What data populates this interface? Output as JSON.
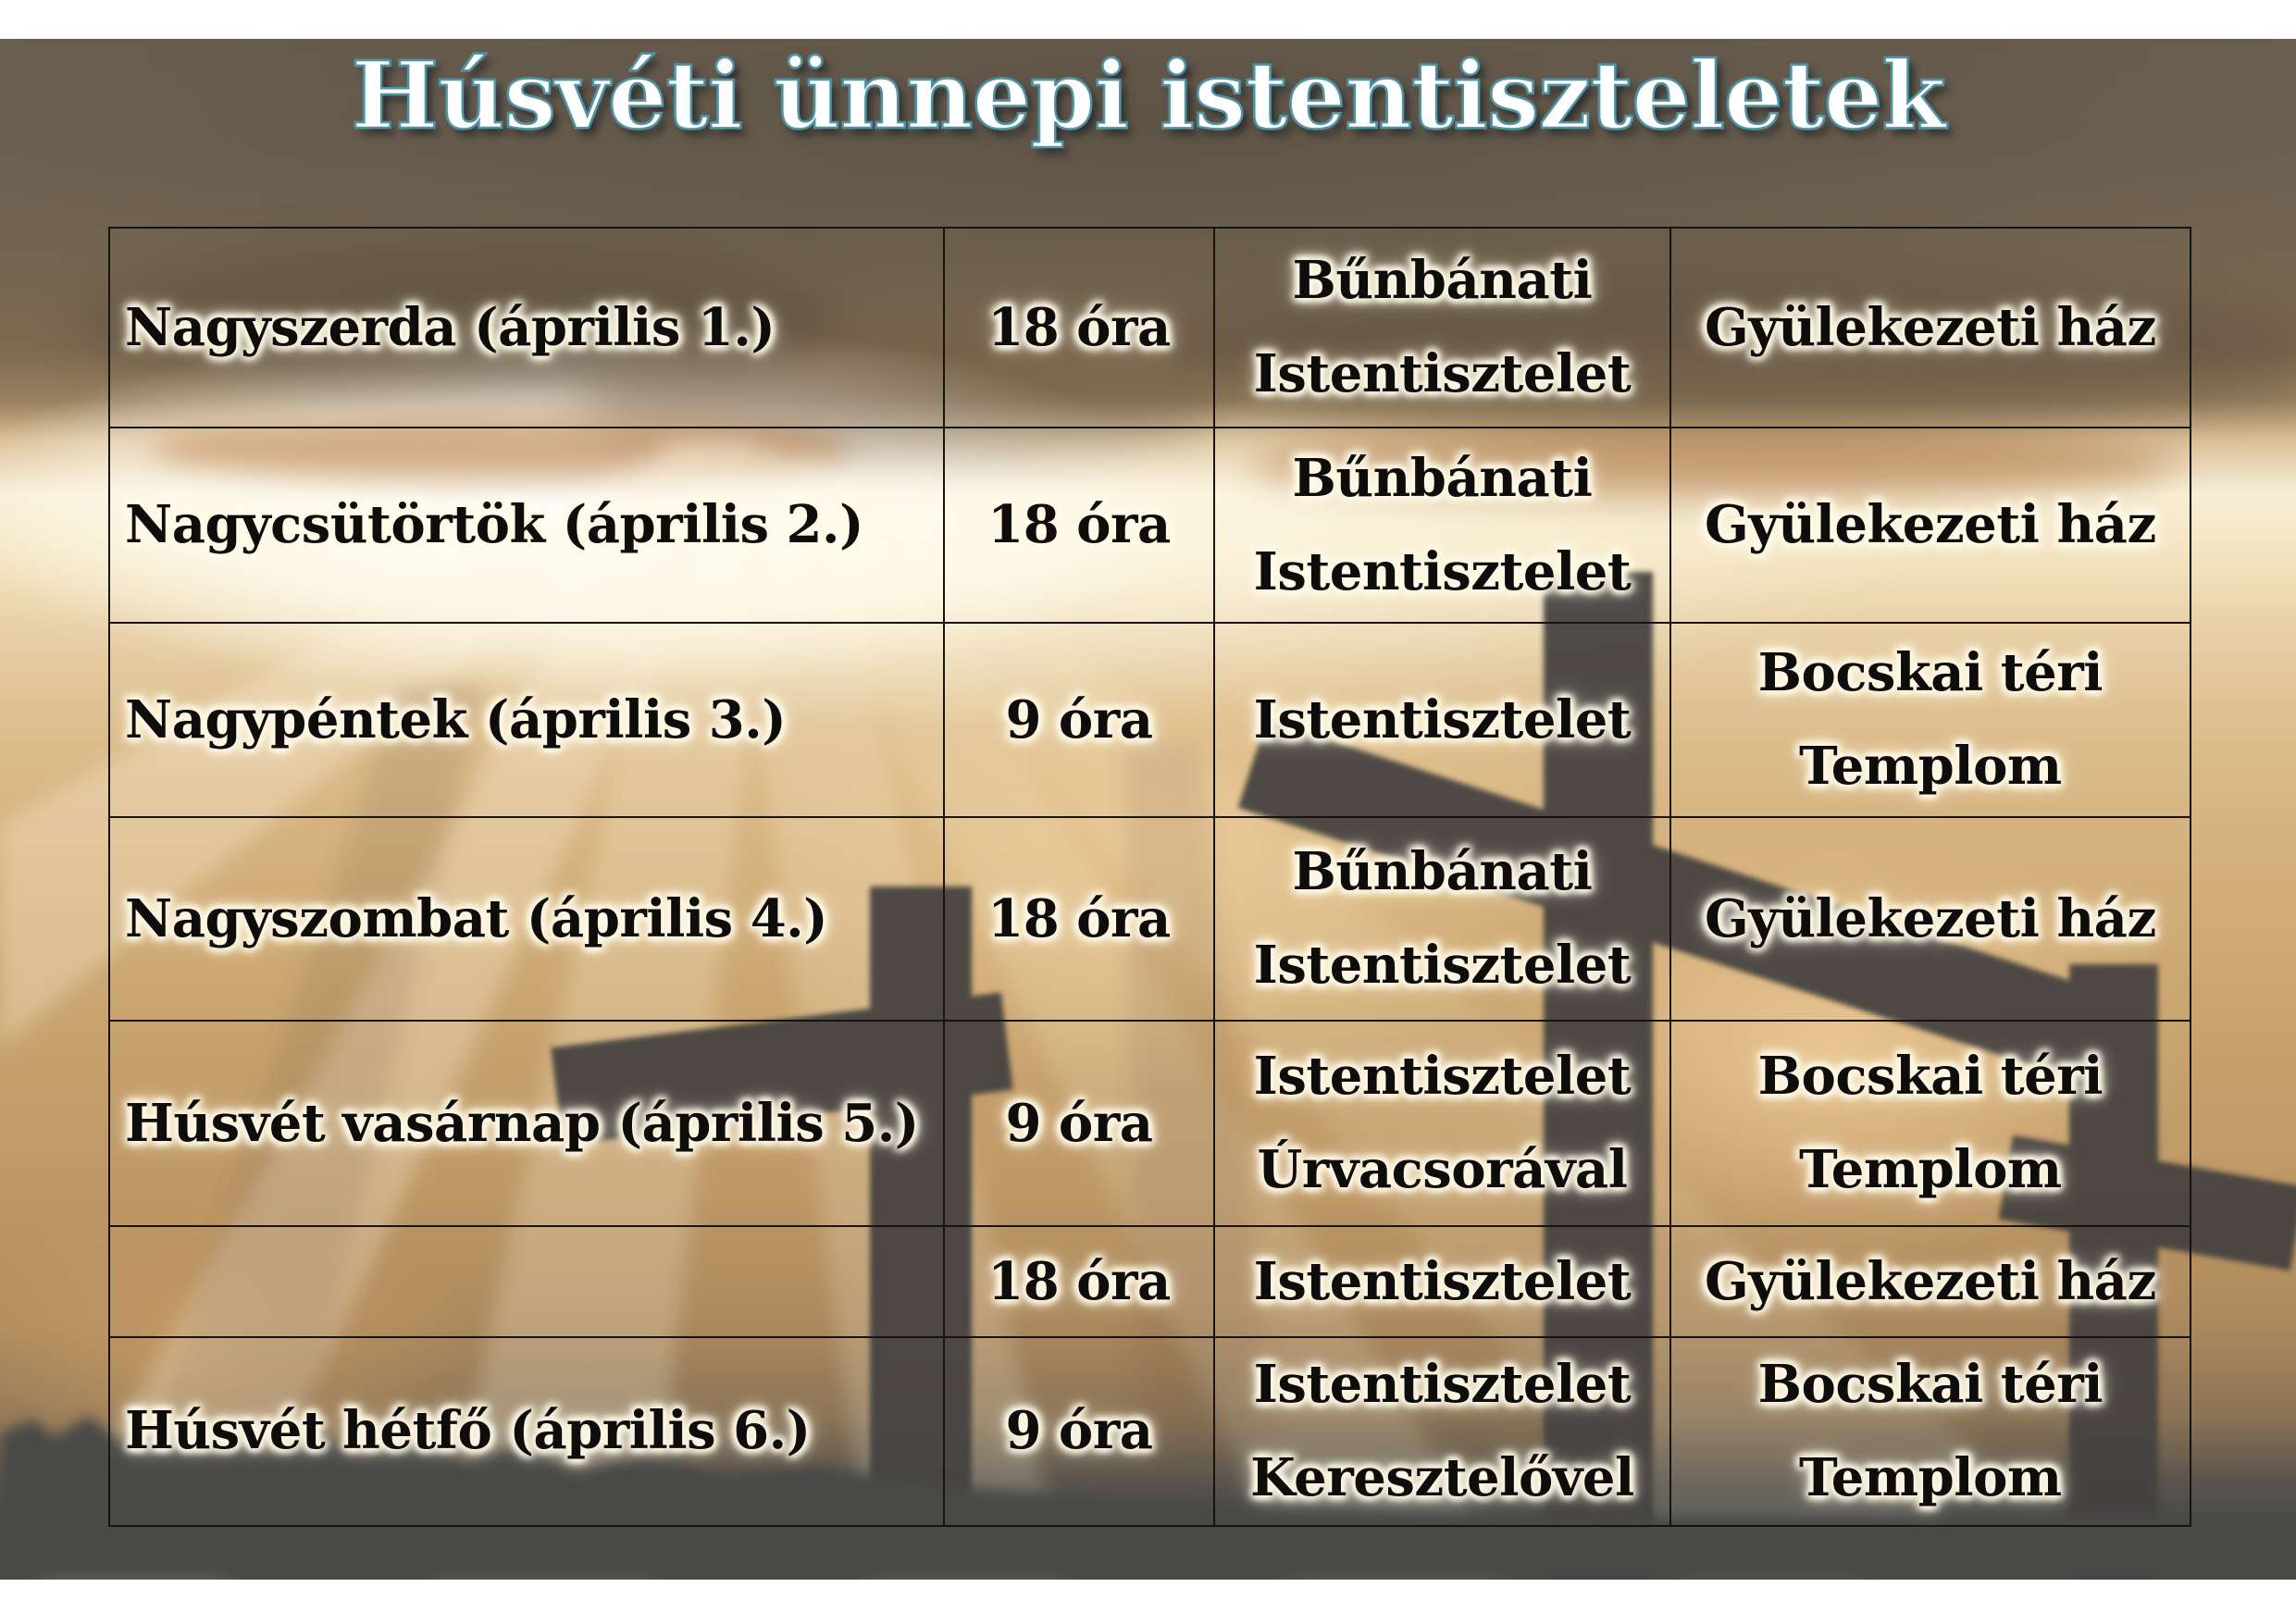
{
  "title": "Húsvéti ünnepi istentiszteletek",
  "table": {
    "rows": [
      {
        "day": "Nagyszerda (április 1.)",
        "time": "18 óra",
        "service": [
          "Bűnbánati",
          "Istentisztelet"
        ],
        "location": [
          "Gyülekezeti ház"
        ]
      },
      {
        "day": "Nagycsütörtök (április 2.)",
        "time": "18 óra",
        "service": [
          "Bűnbánati",
          "Istentisztelet"
        ],
        "location": [
          "Gyülekezeti ház"
        ]
      },
      {
        "day": "Nagypéntek (április 3.)",
        "time": "9 óra",
        "service": [
          "Istentisztelet"
        ],
        "location": [
          "Bocskai téri",
          "Templom"
        ]
      },
      {
        "day": "Nagyszombat (április 4.)",
        "time": "18 óra",
        "service": [
          "Bűnbánati",
          "Istentisztelet"
        ],
        "location": [
          "Gyülekezeti ház"
        ]
      },
      {
        "day": "Húsvét vasárnap (április 5.)",
        "time": "9 óra",
        "service": [
          "Istentisztelet",
          "Úrvacsorával"
        ],
        "location": [
          "Bocskai téri",
          "Templom"
        ]
      },
      {
        "day": "",
        "time": "18 óra",
        "service": [
          "Istentisztelet"
        ],
        "location": [
          "Gyülekezeti ház"
        ]
      },
      {
        "day": "Húsvét hétfő (április 6.)",
        "time": "9 óra",
        "service": [
          "Istentisztelet",
          "Keresztelővel"
        ],
        "location": [
          "Bocskai téri",
          "Templom"
        ]
      }
    ]
  },
  "colors": {
    "title-fill": "#ffffff",
    "title-stroke": "#4f93a4",
    "cell-text": "#0e0d0b",
    "text-glow": "#fff8e6",
    "cross": "#454240",
    "border": "#151411"
  }
}
